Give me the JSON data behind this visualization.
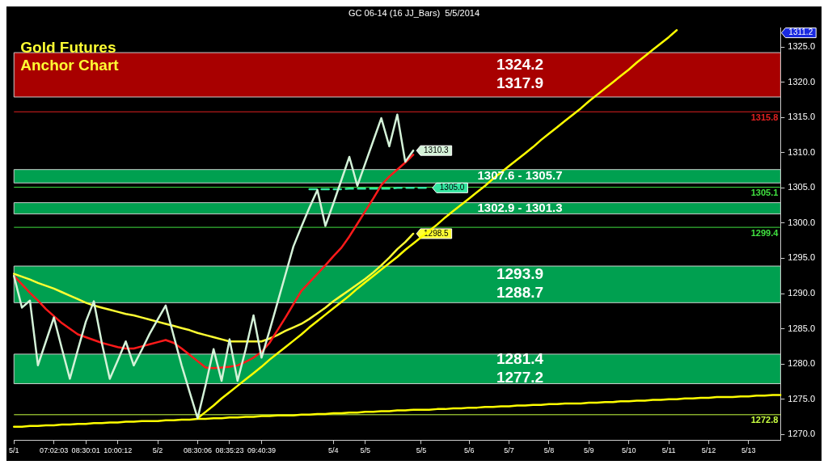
{
  "chart_data": {
    "type": "line",
    "title": "Gold Futures\nAnchor Chart",
    "subtitle": "GC 06-14 (16 JJ_Bars)  5/5/2014",
    "categories": [
      "5/1",
      null,
      null,
      null,
      null,
      "07:02:03",
      null,
      null,
      null,
      "08:30:01",
      null,
      null,
      null,
      "10:00:12",
      null,
      null,
      null,
      null,
      "5/2",
      null,
      null,
      null,
      null,
      "08:30:06",
      null,
      null,
      null,
      "08:35:23",
      null,
      null,
      null,
      "09:40:39",
      null,
      null,
      null,
      null,
      null,
      null,
      null,
      null,
      "5/4",
      null,
      null,
      null,
      "5/5",
      null,
      null,
      null,
      null,
      null,
      null,
      "5/5",
      null,
      null,
      null,
      null,
      null,
      "5/6",
      null,
      null,
      null,
      null,
      "5/7",
      null,
      null,
      null,
      null,
      "5/8",
      null,
      null,
      null,
      null,
      "5/9",
      null,
      null,
      null,
      null,
      "5/10",
      null,
      null,
      null,
      null,
      "5/11",
      null,
      null,
      null,
      null,
      "5/12",
      null,
      null,
      null,
      null,
      "5/13",
      null,
      null,
      null,
      null
    ],
    "ylim": [
      1269.2,
      1327.7
    ],
    "yticks": [
      {
        "value": 1270,
        "label": "1270.0"
      },
      {
        "value": 1275,
        "label": "1275.0"
      },
      {
        "value": 1280,
        "label": "1280.0"
      },
      {
        "value": 1285,
        "label": "1285.0"
      },
      {
        "value": 1290,
        "label": "1290.0"
      },
      {
        "value": 1295,
        "label": "1295.0"
      },
      {
        "value": 1300,
        "label": "1300.0"
      },
      {
        "value": 1305,
        "label": "1305.0"
      },
      {
        "value": 1310,
        "label": "1310.0"
      },
      {
        "value": 1315,
        "label": "1315.0"
      },
      {
        "value": 1320,
        "label": "1320.0"
      },
      {
        "value": 1325,
        "label": "1325.0"
      }
    ],
    "series": [
      {
        "color": "#d4f2d8",
        "values": [
          1292.5,
          1288.0,
          1289.0,
          1279.8,
          1283.2,
          1286.6,
          1282.2,
          1277.9,
          1282,
          1286,
          1288.9,
          1283,
          1277.9,
          1280.5,
          1283.2,
          1279.8,
          1282,
          1284.3,
          1286.3,
          1288.3,
          1284,
          1279.8,
          1276,
          1272.3,
          1277,
          1282.1,
          1277.6,
          1283.5,
          1277.6,
          1282,
          1286.9,
          1280.9,
          1284.7,
          1288.7,
          1292.7,
          1296.7,
          1299.5,
          1302.2,
          1304.7,
          1299.6,
          1302.8,
          1306.1,
          1309.4,
          1305.3,
          1308.5,
          1311.7,
          1314.9,
          1310.9,
          1315.4,
          1308.7,
          1310.3,
          null,
          null,
          null,
          null,
          null,
          null,
          null,
          null,
          null,
          null,
          null,
          null,
          null,
          null,
          null,
          null,
          null,
          null,
          null,
          null,
          null,
          null,
          null,
          null,
          null,
          null,
          null,
          null,
          null,
          null,
          null,
          null,
          null,
          null,
          null,
          null,
          null,
          null,
          null,
          null,
          null,
          null,
          null,
          null,
          null,
          null
        ],
        "value_labels": [
          null,
          null,
          null,
          null,
          null,
          null,
          null,
          null,
          null,
          null,
          null,
          null,
          null,
          null,
          null,
          null,
          null,
          null,
          null,
          null,
          null,
          null,
          null,
          null,
          null,
          null,
          null,
          null,
          null,
          null,
          null,
          null,
          null,
          null,
          null,
          null,
          null,
          null,
          null,
          null,
          null,
          null,
          null,
          null,
          null,
          null,
          null,
          null,
          null,
          null,
          "1310.3",
          null,
          null,
          null,
          null,
          null,
          null,
          null,
          null,
          null,
          null,
          null,
          null,
          null,
          null,
          null,
          null,
          null,
          null,
          null,
          null,
          null,
          null,
          null,
          null,
          null,
          null,
          null,
          null,
          null,
          null,
          null,
          null,
          null,
          null,
          null,
          null,
          null,
          null,
          null,
          null,
          null,
          null,
          null,
          null,
          null,
          null
        ]
      },
      {
        "color": "#ff1a1a",
        "values": [
          1292.5,
          1291.3,
          1290.1,
          1289,
          1287.8,
          1286.8,
          1285.8,
          1285,
          1284.2,
          1283.8,
          1283.4,
          1283,
          1282.7,
          1282.4,
          1282.2,
          1282.2,
          1282.5,
          1282.8,
          1283.1,
          1283.4,
          1283,
          1282.2,
          1281.3,
          1280.4,
          1279.5,
          1279.4,
          1279.5,
          1279.6,
          1279.8,
          1280.3,
          1280.9,
          1281.7,
          1283,
          1284.8,
          1286.6,
          1288.5,
          1290.4,
          1291.6,
          1292.8,
          1294,
          1295.3,
          1296.5,
          1298.1,
          1299.9,
          1301.7,
          1303.5,
          1305.4,
          1306.6,
          1307.6,
          1308.6,
          1309.7,
          null,
          null,
          null,
          null,
          null,
          null,
          null,
          null,
          null,
          null,
          null,
          null,
          null,
          null,
          null,
          null,
          null,
          null,
          null,
          null,
          null,
          null,
          null,
          null,
          null,
          null,
          null,
          null,
          null,
          null,
          null,
          null,
          null,
          null,
          null,
          null,
          null,
          null,
          null,
          null,
          null,
          null,
          null,
          null,
          null,
          null
        ]
      },
      {
        "color": "#ffff33",
        "values": [
          1292.8,
          1292.4,
          1292,
          1291.5,
          1291.1,
          1290.7,
          1290.2,
          1289.7,
          1289.2,
          1288.7,
          1288.3,
          1288,
          1287.7,
          1287.4,
          1287.1,
          1286.9,
          1286.6,
          1286.3,
          1286,
          1285.7,
          1285.4,
          1285.1,
          1284.8,
          1284.4,
          1284.1,
          1283.8,
          1283.5,
          1283.2,
          1283.2,
          1283.2,
          1283.2,
          1283.2,
          1283.6,
          1284.1,
          1284.7,
          1285.2,
          1285.7,
          1286.4,
          1287.2,
          1288,
          1288.9,
          1289.7,
          1290.5,
          1291.3,
          1292.1,
          1293,
          1294,
          1295.1,
          1296.3,
          1297.3,
          1298.5,
          null,
          null,
          null,
          null,
          null,
          null,
          null,
          null,
          null,
          null,
          null,
          null,
          null,
          null,
          null,
          null,
          null,
          null,
          null,
          null,
          null,
          null,
          null,
          null,
          null,
          null,
          null,
          null,
          null,
          null,
          null,
          null,
          null,
          null,
          null,
          null,
          null,
          null,
          null,
          null,
          null,
          null,
          null,
          null,
          null,
          null
        ],
        "value_labels": [
          null,
          null,
          null,
          null,
          null,
          null,
          null,
          null,
          null,
          null,
          null,
          null,
          null,
          null,
          null,
          null,
          null,
          null,
          null,
          null,
          null,
          null,
          null,
          null,
          null,
          null,
          null,
          null,
          null,
          null,
          null,
          null,
          null,
          null,
          null,
          null,
          null,
          null,
          null,
          null,
          null,
          null,
          null,
          null,
          null,
          null,
          null,
          null,
          null,
          null,
          "1298.5",
          null,
          null,
          null,
          null,
          null,
          null,
          null,
          null,
          null,
          null,
          null,
          null,
          null,
          null,
          null,
          null,
          null,
          null,
          null,
          null,
          null,
          null,
          null,
          null,
          null,
          null,
          null,
          null,
          null,
          null,
          null,
          null,
          null,
          null,
          null,
          null,
          null,
          null,
          null,
          null,
          null,
          null,
          null,
          null,
          null,
          null
        ]
      },
      {
        "color": "#ffff00",
        "values": [
          null,
          null,
          null,
          null,
          null,
          null,
          null,
          null,
          null,
          null,
          null,
          null,
          null,
          null,
          null,
          null,
          null,
          null,
          null,
          null,
          null,
          null,
          null,
          1272.3,
          1273.2,
          1274.1,
          1275.1,
          1276.0,
          1276.9,
          1277.8,
          1278.7,
          1279.6,
          1280.6,
          1281.5,
          1282.4,
          1283.3,
          1284.2,
          1285.2,
          1286.1,
          1287.0,
          1287.9,
          1288.8,
          1289.7,
          1290.7,
          1291.6,
          1292.5,
          1293.4,
          1294.3,
          1295.2,
          1296.2,
          1297.1,
          1298.0,
          1298.9,
          1299.8,
          1300.8,
          1301.7,
          1302.6,
          1303.5,
          1304.4,
          1305.3,
          1306.3,
          1307.2,
          1308.1,
          1309.0,
          1309.9,
          1310.8,
          1311.8,
          1312.7,
          1313.6,
          1314.5,
          1315.4,
          1316.3,
          1317.3,
          1318.2,
          1319.1,
          1320.0,
          1320.9,
          1321.8,
          1322.8,
          1323.7,
          1324.6,
          1325.5,
          1326.4,
          1327.4,
          null,
          null,
          null,
          null,
          null,
          null,
          null,
          null,
          null,
          null,
          null,
          null,
          null
        ]
      },
      {
        "color": "#ffff00",
        "values": [
          1271.1,
          1271.1,
          1271.2,
          1271.2,
          1271.3,
          1271.3,
          1271.4,
          1271.4,
          1271.5,
          1271.5,
          1271.6,
          1271.6,
          1271.7,
          1271.7,
          1271.8,
          1271.8,
          1271.9,
          1271.9,
          1271.9,
          1272.0,
          1272.0,
          1272.1,
          1272.1,
          1272.2,
          1272.2,
          1272.3,
          1272.3,
          1272.4,
          1272.4,
          1272.5,
          1272.5,
          1272.6,
          1272.6,
          1272.7,
          1272.7,
          1272.7,
          1272.8,
          1272.8,
          1272.9,
          1272.9,
          1273.0,
          1273.0,
          1273.1,
          1273.1,
          1273.2,
          1273.2,
          1273.3,
          1273.3,
          1273.4,
          1273.4,
          1273.5,
          1273.5,
          1273.5,
          1273.6,
          1273.6,
          1273.7,
          1273.7,
          1273.8,
          1273.8,
          1273.9,
          1273.9,
          1274.0,
          1274.0,
          1274.1,
          1274.1,
          1274.2,
          1274.2,
          1274.3,
          1274.3,
          1274.4,
          1274.4,
          1274.4,
          1274.5,
          1274.5,
          1274.6,
          1274.6,
          1274.7,
          1274.7,
          1274.8,
          1274.8,
          1274.9,
          1274.9,
          1275.0,
          1275.0,
          1275.1,
          1275.1,
          1275.2,
          1275.2,
          1275.3,
          1275.3,
          1275.3,
          1275.4,
          1275.4,
          1275.5,
          1275.5,
          1275.6,
          1275.6
        ]
      },
      {
        "color": "#33e6a0",
        "line_style": "dashed",
        "values": [
          null,
          null,
          null,
          null,
          null,
          null,
          null,
          null,
          null,
          null,
          null,
          null,
          null,
          null,
          null,
          null,
          null,
          null,
          null,
          null,
          null,
          null,
          null,
          null,
          null,
          null,
          null,
          null,
          null,
          null,
          null,
          null,
          null,
          null,
          null,
          null,
          null,
          1304.8,
          1304.8,
          1304.8,
          1304.8,
          1304.8,
          1304.9,
          1304.9,
          1304.9,
          1304.9,
          1304.9,
          1304.9,
          1305.0,
          1305.0,
          1305.0,
          1305.0,
          1305.0,
          null,
          null,
          null,
          null,
          null,
          null,
          null,
          null,
          null,
          null,
          null,
          null,
          null,
          null,
          null,
          null,
          null,
          null,
          null,
          null,
          null,
          null,
          null,
          null,
          null,
          null,
          null,
          null,
          null,
          null,
          null,
          null,
          null,
          null,
          null,
          null,
          null,
          null,
          null,
          null,
          null,
          null,
          null,
          null
        ],
        "value_labels": [
          null,
          null,
          null,
          null,
          null,
          null,
          null,
          null,
          null,
          null,
          null,
          null,
          null,
          null,
          null,
          null,
          null,
          null,
          null,
          null,
          null,
          null,
          null,
          null,
          null,
          null,
          null,
          null,
          null,
          null,
          null,
          null,
          null,
          null,
          null,
          null,
          null,
          null,
          null,
          null,
          null,
          null,
          null,
          null,
          null,
          null,
          null,
          null,
          null,
          null,
          null,
          null,
          "1305.0",
          null,
          null,
          null,
          null,
          null,
          null,
          null,
          null,
          null,
          null,
          null,
          null,
          null,
          null,
          null,
          null,
          null,
          null,
          null,
          null,
          null,
          null,
          null,
          null,
          null,
          null,
          null,
          null,
          null,
          null,
          null,
          null,
          null,
          null,
          null,
          null,
          null,
          null,
          null,
          null,
          null,
          null,
          null,
          null
        ]
      }
    ],
    "bands": [
      {
        "axis": "y",
        "from": 1317.9,
        "to": 1324.2,
        "label": "1324.2\n1317.9",
        "color": "#a80000"
      },
      {
        "axis": "y",
        "from": 1305.7,
        "to": 1307.6,
        "label": "1307.6 - 1305.7",
        "color": "#00a050"
      },
      {
        "axis": "y",
        "from": 1301.3,
        "to": 1302.9,
        "label": "1302.9 - 1301.3",
        "color": "#00a050"
      },
      {
        "axis": "y",
        "from": 1288.7,
        "to": 1293.9,
        "label": "1293.9\n1288.7",
        "color": "#00a050"
      },
      {
        "axis": "y",
        "from": 1277.2,
        "to": 1281.4,
        "label": "1281.4\n1277.2",
        "color": "#00a050"
      }
    ],
    "ref_lines": [
      {
        "axis": "y",
        "value": 1315.8,
        "label": "1315.8",
        "color": "#e02020"
      },
      {
        "axis": "y",
        "value": 1305.1,
        "label": "1305.1",
        "color": "#40e040"
      },
      {
        "axis": "y",
        "value": 1299.4,
        "label": "1299.4",
        "color": "#40e040"
      },
      {
        "axis": "y",
        "value": 1272.8,
        "label": "1272.8",
        "color": "#c8ff40"
      }
    ],
    "annotations": [
      "1311.2"
    ],
    "grid": false,
    "legend": false,
    "marker": "none",
    "line_style": "solid"
  }
}
